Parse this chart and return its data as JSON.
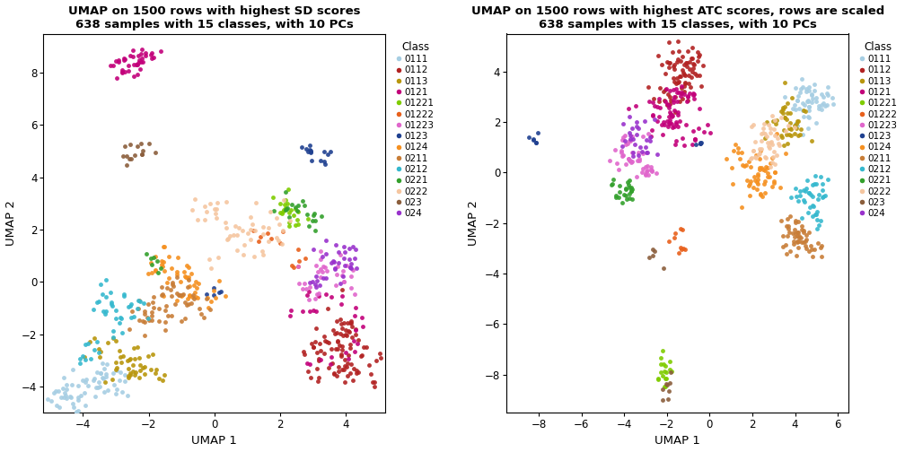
{
  "title1": "UMAP on 1500 rows with highest SD scores\n638 samples with 15 classes, with 10 PCs",
  "title2": "UMAP on 1500 rows with highest ATC scores, rows are scaled\n638 samples with 15 classes, with 10 PCs",
  "xlabel": "UMAP 1",
  "ylabel": "UMAP 2",
  "classes": [
    "0111",
    "0112",
    "0113",
    "0121",
    "01221",
    "01222",
    "01223",
    "0123",
    "0124",
    "0211",
    "0212",
    "0221",
    "0222",
    "023",
    "024"
  ],
  "colors": {
    "0111": "#A6CEE3",
    "0112": "#B22222",
    "0113": "#B8960C",
    "0121": "#C2007A",
    "01221": "#7FCC00",
    "01222": "#E8601C",
    "01223": "#E066CC",
    "0123": "#1F4090",
    "0124": "#F59020",
    "0211": "#C87D37",
    "0212": "#35B8CE",
    "0221": "#33A02C",
    "0222": "#F5C6A0",
    "023": "#8B5E3C",
    "024": "#9932CC"
  },
  "plot1_xlim": [
    -5.2,
    5.2
  ],
  "plot1_ylim": [
    -5.0,
    9.5
  ],
  "plot1_xticks": [
    -4,
    -2,
    0,
    2,
    4
  ],
  "plot1_yticks": [
    -4,
    -2,
    0,
    2,
    4,
    6,
    8
  ],
  "plot2_xlim": [
    -9.5,
    6.5
  ],
  "plot2_ylim": [
    -9.5,
    5.5
  ],
  "plot2_xticks": [
    -8,
    -6,
    -4,
    -2,
    0,
    2,
    4,
    6
  ],
  "plot2_yticks": [
    -8,
    -6,
    -4,
    -2,
    0,
    2,
    4
  ],
  "markersize": 3.5,
  "alpha": 0.9,
  "legend_markersize": 5
}
